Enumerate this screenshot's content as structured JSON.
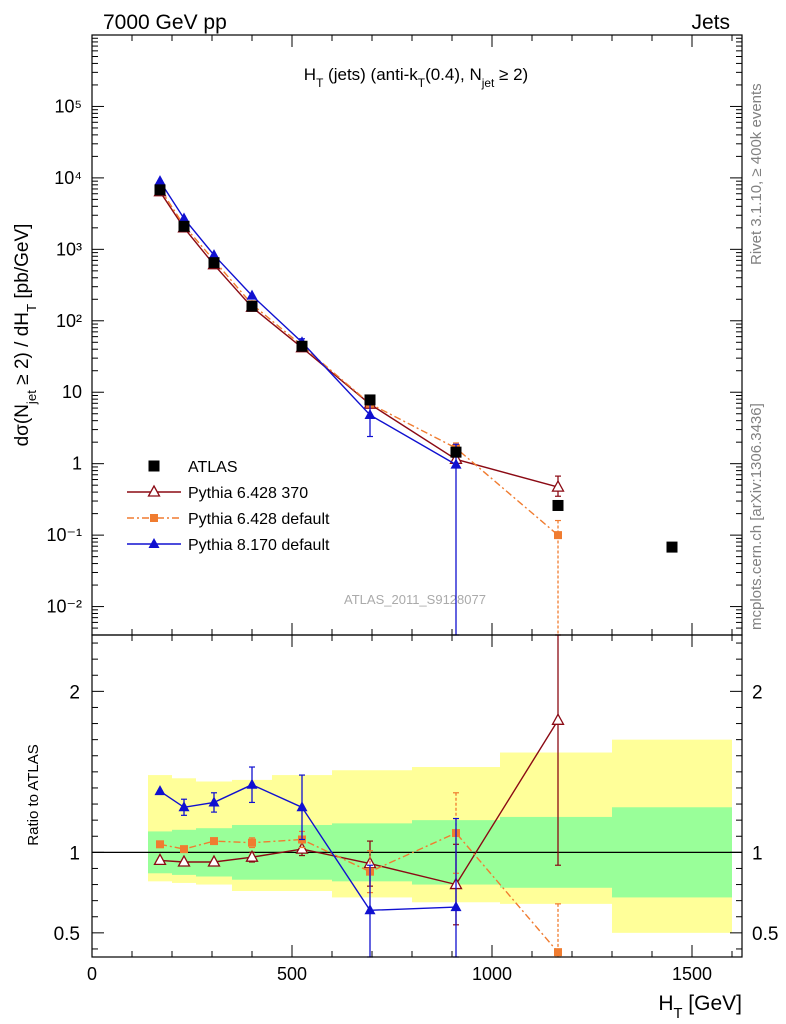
{
  "header": {
    "left": "7000 GeV pp",
    "right": "Jets"
  },
  "side_labels": {
    "rivet": "Rivet 3.1.10, ≥ 400k events",
    "mcplots": "mcplots.cern.ch [arXiv:1306.3436]"
  },
  "watermark": "ATLAS_2011_S9128077",
  "chart_data": [
    {
      "type": "scatter",
      "panel": "main",
      "title": "H_T (jets) (anti-k_T(0.4), N_jet ≥ 2)",
      "ylabel": "dσ(N_jet ≥ 2) / dH_T [pb/GeV]",
      "xlabel": "",
      "y_scale": "log",
      "xlim": [
        0,
        1625
      ],
      "ylim": [
        0.004,
        1000000
      ],
      "x_ticks": [
        0,
        500,
        1000,
        1500
      ],
      "y_tick_labels": [
        "10⁻²",
        "10⁻¹",
        "1",
        "10",
        "10²",
        "10³",
        "10⁴",
        "10⁵"
      ],
      "legend_position": "middle-left",
      "series": [
        {
          "name": "ATLAS",
          "color": "#000000",
          "marker": "square",
          "line": "none",
          "x": [
            170,
            230,
            305,
            400,
            525,
            695,
            910,
            1165,
            1450
          ],
          "y": [
            6800,
            2100,
            650,
            160,
            44,
            7.8,
            1.45,
            0.26,
            0.068
          ]
        },
        {
          "name": "Pythia 6.428 370",
          "color": "#8b0a14",
          "marker": "open-triangle",
          "line": "solid",
          "x": [
            170,
            230,
            305,
            400,
            525,
            695,
            910,
            1165
          ],
          "y": [
            6400,
            2000,
            610,
            155,
            42,
            6.8,
            1.15,
            0.47
          ],
          "err_low": [
            0,
            0,
            0,
            0,
            0,
            0,
            0,
            0.12
          ],
          "err_high": [
            0,
            0,
            0,
            0,
            0,
            0,
            0,
            0.2
          ]
        },
        {
          "name": "Pythia 6.428 default",
          "color": "#f07c30",
          "marker": "square",
          "line": "dashdot",
          "x": [
            170,
            230,
            305,
            400,
            525,
            695,
            910,
            1165
          ],
          "y": [
            7100,
            2150,
            700,
            170,
            45,
            6.9,
            1.65,
            0.1
          ],
          "err_low": [
            0,
            0,
            0,
            0,
            0,
            0,
            0.3,
            0.099
          ],
          "err_high": [
            0,
            0,
            0,
            0,
            0,
            0,
            0.3,
            0.06
          ]
        },
        {
          "name": "Pythia 8.170 default",
          "color": "#1010d0",
          "marker": "triangle",
          "line": "solid",
          "x": [
            170,
            230,
            305,
            400,
            525,
            695,
            910
          ],
          "y": [
            9000,
            2700,
            830,
            225,
            50,
            4.8,
            0.97
          ],
          "err_low": [
            0,
            0,
            0,
            0,
            6,
            2.4,
            0.969
          ],
          "err_high": [
            0,
            0,
            0,
            0,
            6,
            2.4,
            0.9
          ]
        }
      ]
    },
    {
      "type": "scatter",
      "panel": "ratio",
      "xlabel": "H_T [GeV]",
      "ylabel": "Ratio to ATLAS",
      "xlim": [
        0,
        1625
      ],
      "ylim": [
        0.35,
        2.35
      ],
      "x_ticks": [
        0,
        500,
        1000,
        1500
      ],
      "y_ticks": [
        0.5,
        1,
        2
      ],
      "reference_line": 1,
      "bands": {
        "edges": [
          140,
          200,
          260,
          350,
          450,
          600,
          800,
          1020,
          1300,
          1600
        ],
        "inner": [
          [
            0.87,
            1.13
          ],
          [
            0.86,
            1.14
          ],
          [
            0.85,
            1.15
          ],
          [
            0.83,
            1.17
          ],
          [
            0.83,
            1.17
          ],
          [
            0.82,
            1.18
          ],
          [
            0.8,
            1.2
          ],
          [
            0.78,
            1.22
          ],
          [
            0.72,
            1.28
          ]
        ],
        "outer": [
          [
            0.82,
            1.48
          ],
          [
            0.81,
            1.46
          ],
          [
            0.8,
            1.44
          ],
          [
            0.76,
            1.45
          ],
          [
            0.76,
            1.48
          ],
          [
            0.72,
            1.51
          ],
          [
            0.69,
            1.53
          ],
          [
            0.68,
            1.62
          ],
          [
            0.5,
            1.7
          ]
        ],
        "colors": {
          "inner": "#99ff99",
          "outer": "#ffff99"
        }
      },
      "series": [
        {
          "name": "Pythia 6.428 370",
          "color": "#8b0a14",
          "marker": "open-triangle",
          "line": "solid",
          "x": [
            170,
            230,
            305,
            400,
            525,
            695,
            910,
            1165
          ],
          "y": [
            0.95,
            0.94,
            0.94,
            0.97,
            1.02,
            0.93,
            0.8,
            1.82
          ],
          "err_low": [
            0,
            0,
            0,
            0.03,
            0.04,
            0.14,
            0.25,
            0.9
          ],
          "err_high": [
            0,
            0,
            0,
            0.03,
            0.04,
            0.14,
            0.25,
            0.6
          ]
        },
        {
          "name": "Pythia 6.428 default",
          "color": "#f07c30",
          "marker": "square",
          "line": "dashdot",
          "x": [
            170,
            230,
            305,
            400,
            525,
            695,
            910,
            1165
          ],
          "y": [
            1.05,
            1.02,
            1.07,
            1.06,
            1.08,
            0.88,
            1.12,
            0.38
          ],
          "err_low": [
            0,
            0,
            0,
            0.03,
            0.05,
            0.13,
            0.25,
            0.3
          ],
          "err_high": [
            0,
            0,
            0,
            0.03,
            0.05,
            0.13,
            0.25,
            0.3
          ]
        },
        {
          "name": "Pythia 8.170 default",
          "color": "#1010d0",
          "marker": "triangle",
          "line": "solid",
          "x": [
            170,
            230,
            305,
            400,
            525,
            695,
            910
          ],
          "y": [
            1.38,
            1.28,
            1.31,
            1.42,
            1.28,
            0.64,
            0.66
          ],
          "err_low": [
            0,
            0.05,
            0.06,
            0.11,
            0.2,
            0.6,
            0.6
          ],
          "err_high": [
            0,
            0.05,
            0.06,
            0.11,
            0.2,
            0.28,
            0.55
          ]
        }
      ]
    }
  ]
}
